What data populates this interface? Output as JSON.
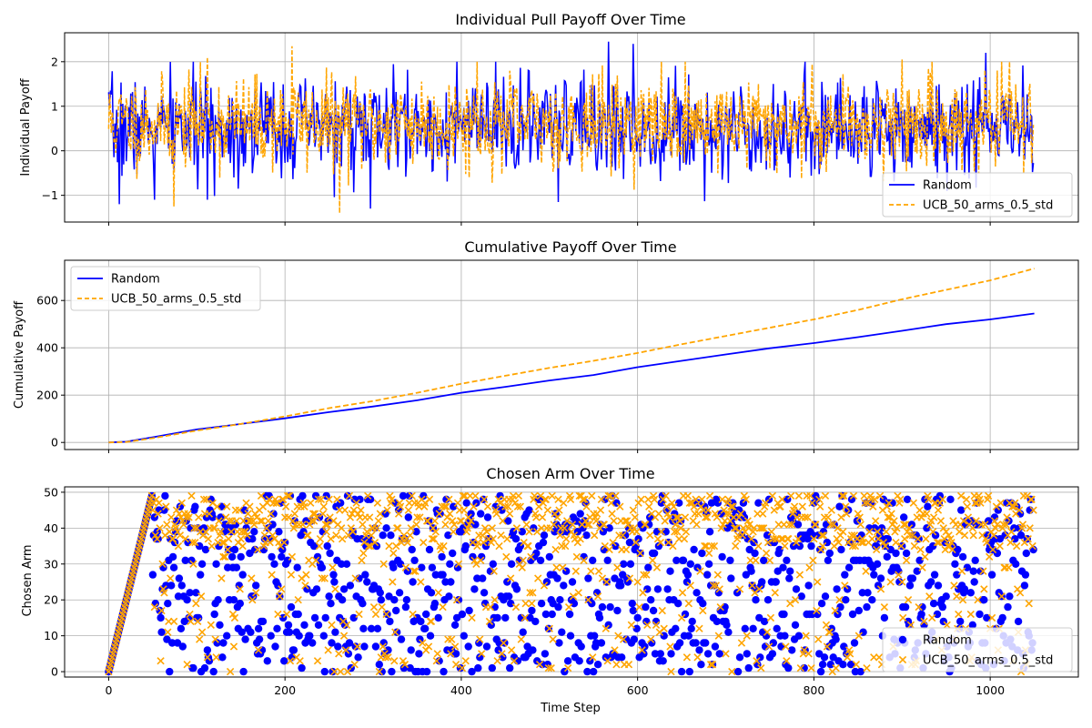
{
  "colors": {
    "random": "#0000ff",
    "ucb": "#ffa500"
  },
  "chart_data": [
    {
      "type": "line",
      "title": "Individual Pull Payoff Over Time",
      "xlabel": "",
      "ylabel": "Individual Payoff",
      "xlim": [
        -50,
        1100
      ],
      "ylim": [
        -1.6,
        2.65
      ],
      "xticks": [
        0,
        200,
        400,
        600,
        800,
        1000
      ],
      "yticks": [
        -1,
        0,
        1,
        2
      ],
      "legend": "lower-right",
      "grid": true,
      "series": [
        {
          "name": "Random",
          "style": "solid",
          "color": "#0000ff",
          "mean": 0.52,
          "std": 0.55,
          "seed": 7,
          "n": 1050,
          "extremes": [
            [
              12,
              -1.2
            ],
            [
              52,
              -1.1
            ],
            [
              112,
              -1.1
            ],
            [
              297,
              -1.3
            ],
            [
              309,
              0.05
            ],
            [
              510,
              -1.15
            ],
            [
              567,
              2.45
            ],
            [
              595,
              2.4
            ],
            [
              995,
              2.2
            ]
          ]
        },
        {
          "name": "UCB_50_arms_0.5_std",
          "style": "dashed",
          "color": "#ffa500",
          "mean": 0.63,
          "std": 0.5,
          "seed": 11,
          "n": 1050,
          "extremes": [
            [
              74,
              -1.25
            ],
            [
              112,
              2.1
            ],
            [
              208,
              2.35
            ],
            [
              262,
              -1.4
            ],
            [
              418,
              2.0
            ],
            [
              900,
              2.05
            ],
            [
              1022,
              2.0
            ]
          ]
        }
      ]
    },
    {
      "type": "line",
      "title": "Cumulative Payoff Over Time",
      "xlabel": "",
      "ylabel": "Cumulative Payoff",
      "xlim": [
        -50,
        1100
      ],
      "ylim": [
        -30,
        770
      ],
      "xticks": [
        0,
        200,
        400,
        600,
        800,
        1000
      ],
      "yticks": [
        0,
        200,
        400,
        600
      ],
      "legend": "upper-left",
      "grid": true,
      "series": [
        {
          "name": "Random",
          "style": "solid",
          "color": "#0000ff",
          "x": [
            0,
            20,
            50,
            100,
            150,
            200,
            250,
            300,
            350,
            400,
            450,
            500,
            550,
            600,
            650,
            700,
            750,
            800,
            850,
            900,
            950,
            1000,
            1050
          ],
          "y": [
            0,
            3,
            22,
            55,
            78,
            102,
            128,
            152,
            178,
            210,
            235,
            262,
            285,
            318,
            345,
            372,
            398,
            420,
            445,
            472,
            500,
            520,
            545
          ]
        },
        {
          "name": "UCB_50_arms_0.5_std",
          "style": "dashed",
          "color": "#ffa500",
          "x": [
            0,
            20,
            50,
            100,
            150,
            200,
            250,
            300,
            350,
            400,
            450,
            500,
            550,
            600,
            650,
            700,
            750,
            800,
            850,
            900,
            950,
            1000,
            1050
          ],
          "y": [
            0,
            2,
            18,
            50,
            78,
            110,
            145,
            175,
            210,
            248,
            282,
            315,
            345,
            378,
            415,
            450,
            485,
            520,
            560,
            605,
            645,
            685,
            735
          ]
        }
      ]
    },
    {
      "type": "scatter",
      "title": "Chosen Arm Over Time",
      "xlabel": "Time Step",
      "ylabel": "Chosen Arm",
      "xlim": [
        -50,
        1100
      ],
      "ylim": [
        -1.5,
        51.5
      ],
      "xticks": [
        0,
        200,
        400,
        600,
        800,
        1000
      ],
      "yticks": [
        0,
        10,
        20,
        30,
        40,
        50
      ],
      "legend": "lower-right",
      "grid": true,
      "series": [
        {
          "name": "Random",
          "marker": "circle",
          "color": "#0000ff",
          "n": 1050,
          "arms": 50,
          "warmup": 50,
          "seed": 3,
          "bias_high": 0.0
        },
        {
          "name": "UCB_50_arms_0.5_std",
          "marker": "x",
          "color": "#ffa500",
          "n": 1050,
          "arms": 50,
          "warmup": 50,
          "seed": 5,
          "bias_high": 0.55
        }
      ]
    }
  ]
}
